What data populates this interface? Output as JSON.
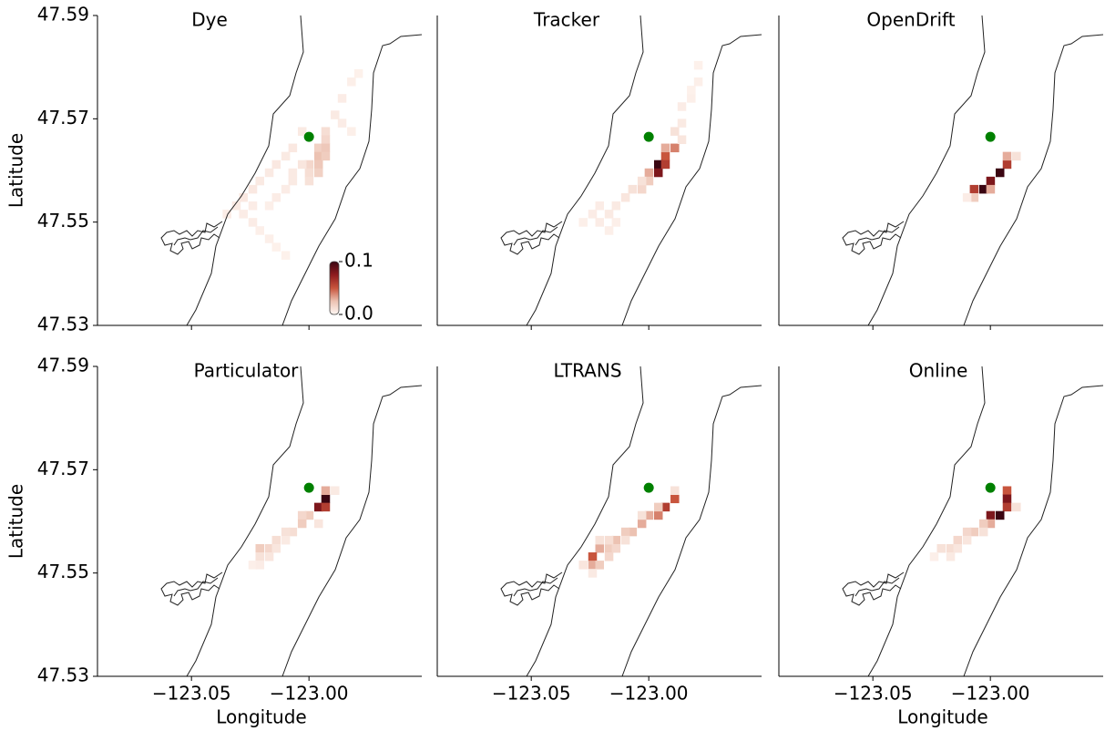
{
  "chart_data": [
    {
      "type": "heatmap",
      "title": "Dye",
      "ylabel": "Latitude",
      "xlim": [
        -123.09,
        -122.952
      ],
      "ylim": [
        47.53,
        47.59
      ],
      "xticks": [
        -123.05,
        -123.0
      ],
      "yticks": [
        47.53,
        47.55,
        47.57,
        47.59
      ],
      "marker": [
        -123.0,
        47.5665
      ],
      "marker_color": "#008000",
      "colorbar": {
        "lim": [
          0,
          0.1
        ],
        "ticks": [
          {
            "value": 0,
            "label": "0.0"
          },
          0.1
        ],
        "colors": [
          "#fff7f3",
          "#ecc2b2",
          "#c8553d",
          "#8e1b1f",
          "#3b0612"
        ]
      },
      "cells": [
        [
          -122.993,
          47.5676,
          0.012
        ],
        [
          -122.993,
          47.566,
          0.015
        ],
        [
          -122.996,
          47.5644,
          0.018
        ],
        [
          -122.993,
          47.5644,
          0.022
        ],
        [
          -122.996,
          47.5628,
          0.025
        ],
        [
          -122.993,
          47.5628,
          0.02
        ],
        [
          -122.996,
          47.5612,
          0.022
        ],
        [
          -123.0,
          47.5612,
          0.015
        ],
        [
          -123.0,
          47.5596,
          0.012
        ],
        [
          -122.996,
          47.5596,
          0.018
        ],
        [
          -123.0,
          47.558,
          0.01
        ],
        [
          -122.989,
          47.5708,
          0.006
        ],
        [
          -122.986,
          47.574,
          0.005
        ],
        [
          -122.982,
          47.5772,
          0.004
        ],
        [
          -122.979,
          47.5788,
          0.003
        ],
        [
          -122.986,
          47.5692,
          0.005
        ],
        [
          -122.982,
          47.5676,
          0.004
        ],
        [
          -123.003,
          47.5676,
          0.006
        ],
        [
          -123.007,
          47.5644,
          0.007
        ],
        [
          -123.01,
          47.5628,
          0.006
        ],
        [
          -123.014,
          47.5612,
          0.007
        ],
        [
          -123.017,
          47.5596,
          0.006
        ],
        [
          -123.021,
          47.558,
          0.006
        ],
        [
          -123.024,
          47.5564,
          0.007
        ],
        [
          -123.028,
          47.5548,
          0.007
        ],
        [
          -123.031,
          47.5532,
          0.006
        ],
        [
          -123.035,
          47.5516,
          0.005
        ],
        [
          -123.028,
          47.5516,
          0.005
        ],
        [
          -123.024,
          47.55,
          0.005
        ],
        [
          -123.021,
          47.5484,
          0.004
        ],
        [
          -123.017,
          47.5468,
          0.004
        ],
        [
          -123.014,
          47.5452,
          0.003
        ],
        [
          -123.01,
          47.5436,
          0.003
        ],
        [
          -123.007,
          47.558,
          0.006
        ],
        [
          -123.01,
          47.5564,
          0.005
        ],
        [
          -123.014,
          47.5548,
          0.005
        ],
        [
          -123.017,
          47.5532,
          0.004
        ],
        [
          -123.024,
          47.5532,
          0.005
        ],
        [
          -123.003,
          47.5612,
          0.008
        ],
        [
          -123.007,
          47.5596,
          0.006
        ]
      ]
    },
    {
      "type": "heatmap",
      "title": "Tracker",
      "xlim": [
        -123.09,
        -122.952
      ],
      "ylim": [
        47.53,
        47.59
      ],
      "xticks": [
        -123.05,
        -123.0
      ],
      "marker": [
        -123.0,
        47.5665
      ],
      "marker_color": "#008000",
      "cells": [
        [
          -122.993,
          47.5628,
          0.05
        ],
        [
          -122.996,
          47.5612,
          0.1
        ],
        [
          -122.996,
          47.5596,
          0.08
        ],
        [
          -122.993,
          47.5612,
          0.06
        ],
        [
          -122.989,
          47.5644,
          0.04
        ],
        [
          -122.993,
          47.5644,
          0.03
        ],
        [
          -123.0,
          47.5596,
          0.03
        ],
        [
          -123.0,
          47.558,
          0.02
        ],
        [
          -123.003,
          47.5564,
          0.015
        ],
        [
          -123.007,
          47.5564,
          0.01
        ],
        [
          -123.01,
          47.5548,
          0.008
        ],
        [
          -123.014,
          47.5532,
          0.006
        ],
        [
          -123.017,
          47.5516,
          0.006
        ],
        [
          -123.021,
          47.5532,
          0.005
        ],
        [
          -123.024,
          47.5516,
          0.005
        ],
        [
          -123.021,
          47.55,
          0.005
        ],
        [
          -123.017,
          47.5484,
          0.004
        ],
        [
          -123.014,
          47.55,
          0.004
        ],
        [
          -123.028,
          47.55,
          0.004
        ],
        [
          -122.989,
          47.5676,
          0.01
        ],
        [
          -122.986,
          47.5692,
          0.006
        ],
        [
          -122.986,
          47.5724,
          0.005
        ],
        [
          -122.982,
          47.574,
          0.004
        ],
        [
          -122.979,
          47.5772,
          0.004
        ],
        [
          -122.979,
          47.5804,
          0.003
        ],
        [
          -122.982,
          47.5756,
          0.003
        ],
        [
          -122.986,
          47.566,
          0.008
        ],
        [
          -123.003,
          47.558,
          0.01
        ]
      ]
    },
    {
      "type": "heatmap",
      "title": "OpenDrift",
      "xlim": [
        -123.09,
        -122.952
      ],
      "ylim": [
        47.53,
        47.59
      ],
      "xticks": [
        -123.05,
        -123.0
      ],
      "marker": [
        -123.0,
        47.5665
      ],
      "marker_color": "#008000",
      "cells": [
        [
          -122.993,
          47.5612,
          0.06
        ],
        [
          -122.993,
          47.5628,
          0.03
        ],
        [
          -122.996,
          47.5596,
          0.1
        ],
        [
          -123.0,
          47.558,
          0.08
        ],
        [
          -123.003,
          47.5564,
          0.1
        ],
        [
          -123.007,
          47.5564,
          0.06
        ],
        [
          -123.007,
          47.5548,
          0.02
        ],
        [
          -123.0,
          47.5564,
          0.03
        ],
        [
          -122.989,
          47.5628,
          0.01
        ],
        [
          -123.01,
          47.5548,
          0.005
        ]
      ]
    },
    {
      "type": "heatmap",
      "title": "Particulator",
      "xlabel": "Longitude",
      "ylabel": "Latitude",
      "xlim": [
        -123.09,
        -122.952
      ],
      "ylim": [
        47.53,
        47.59
      ],
      "xticks": [
        {
          "value": -123.05,
          "label": "−123.05"
        },
        {
          "value": -123.0,
          "label": "−123.00"
        }
      ],
      "yticks": [
        47.53,
        47.55,
        47.57,
        47.59
      ],
      "marker": [
        -123.0,
        47.5665
      ],
      "marker_color": "#008000",
      "cells": [
        [
          -122.993,
          47.5644,
          0.1
        ],
        [
          -122.993,
          47.566,
          0.03
        ],
        [
          -122.996,
          47.5628,
          0.08
        ],
        [
          -122.993,
          47.5628,
          0.06
        ],
        [
          -123.0,
          47.5612,
          0.02
        ],
        [
          -123.003,
          47.5612,
          0.015
        ],
        [
          -123.003,
          47.5596,
          0.02
        ],
        [
          -123.007,
          47.558,
          0.012
        ],
        [
          -123.01,
          47.558,
          0.01
        ],
        [
          -123.014,
          47.5564,
          0.012
        ],
        [
          -123.017,
          47.5548,
          0.015
        ],
        [
          -123.021,
          47.5548,
          0.02
        ],
        [
          -123.021,
          47.5532,
          0.01
        ],
        [
          -123.017,
          47.5532,
          0.008
        ],
        [
          -123.014,
          47.5548,
          0.008
        ],
        [
          -123.024,
          47.5516,
          0.004
        ],
        [
          -123.021,
          47.5516,
          0.005
        ],
        [
          -123.01,
          47.5564,
          0.006
        ],
        [
          -122.996,
          47.5596,
          0.008
        ],
        [
          -122.989,
          47.566,
          0.006
        ]
      ]
    },
    {
      "type": "heatmap",
      "title": "LTRANS",
      "xlim": [
        -123.09,
        -122.952
      ],
      "ylim": [
        47.53,
        47.59
      ],
      "xticks": [
        {
          "value": -123.05,
          "label": "−123.05"
        },
        {
          "value": -123.0,
          "label": "−123.00"
        }
      ],
      "marker": [
        -123.0,
        47.5665
      ],
      "marker_color": "#008000",
      "cells": [
        [
          -122.989,
          47.5644,
          0.05
        ],
        [
          -122.993,
          47.5628,
          0.06
        ],
        [
          -122.996,
          47.5612,
          0.04
        ],
        [
          -123.0,
          47.5612,
          0.03
        ],
        [
          -123.003,
          47.5596,
          0.03
        ],
        [
          -123.007,
          47.558,
          0.025
        ],
        [
          -123.01,
          47.558,
          0.02
        ],
        [
          -123.014,
          47.5564,
          0.025
        ],
        [
          -123.017,
          47.5548,
          0.02
        ],
        [
          -123.021,
          47.5548,
          0.03
        ],
        [
          -123.024,
          47.5532,
          0.05
        ],
        [
          -123.024,
          47.5516,
          0.03
        ],
        [
          -123.021,
          47.5516,
          0.02
        ],
        [
          -123.017,
          47.5532,
          0.015
        ],
        [
          -123.014,
          47.5548,
          0.015
        ],
        [
          -123.021,
          47.5564,
          0.01
        ],
        [
          -123.017,
          47.5564,
          0.012
        ],
        [
          -123.003,
          47.5612,
          0.01
        ],
        [
          -122.996,
          47.5628,
          0.02
        ],
        [
          -122.989,
          47.566,
          0.01
        ],
        [
          -123.028,
          47.5516,
          0.008
        ],
        [
          -123.024,
          47.55,
          0.006
        ],
        [
          -123.01,
          47.5564,
          0.01
        ]
      ]
    },
    {
      "type": "heatmap",
      "title": "Online",
      "xlabel": "Longitude",
      "xlim": [
        -123.09,
        -122.952
      ],
      "ylim": [
        47.53,
        47.59
      ],
      "xticks": [
        {
          "value": -123.05,
          "label": "−123.05"
        },
        {
          "value": -123.0,
          "label": "−123.00"
        }
      ],
      "marker": [
        -123.0,
        47.5665
      ],
      "marker_color": "#008000",
      "cells": [
        [
          -122.993,
          47.566,
          0.05
        ],
        [
          -122.993,
          47.5644,
          0.08
        ],
        [
          -122.993,
          47.5628,
          0.06
        ],
        [
          -122.996,
          47.5612,
          0.1
        ],
        [
          -123.0,
          47.5612,
          0.08
        ],
        [
          -123.0,
          47.5596,
          0.03
        ],
        [
          -123.003,
          47.5596,
          0.02
        ],
        [
          -123.007,
          47.558,
          0.02
        ],
        [
          -123.01,
          47.558,
          0.015
        ],
        [
          -123.014,
          47.5564,
          0.015
        ],
        [
          -123.017,
          47.5548,
          0.012
        ],
        [
          -123.021,
          47.5548,
          0.01
        ],
        [
          -123.017,
          47.5532,
          0.006
        ],
        [
          -123.014,
          47.5548,
          0.008
        ],
        [
          -123.024,
          47.5532,
          0.004
        ],
        [
          -122.989,
          47.5628,
          0.01
        ],
        [
          -123.003,
          47.558,
          0.01
        ],
        [
          -123.01,
          47.5564,
          0.008
        ]
      ]
    }
  ]
}
